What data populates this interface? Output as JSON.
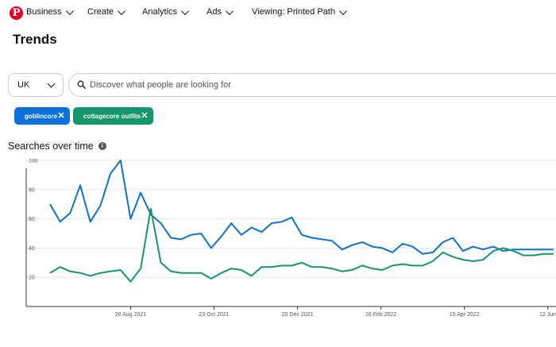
{
  "nav": {
    "business": "Business",
    "create": "Create",
    "analytics": "Analytics",
    "ads": "Ads",
    "viewing": "Viewing: Printed Path"
  },
  "page_title": "Trends",
  "region": {
    "value": "UK"
  },
  "search": {
    "placeholder": "Discover what people are looking for",
    "value": ""
  },
  "chips": [
    {
      "label": "goblincore",
      "color": "#0a72d9"
    },
    {
      "label": "cottagecore outfits",
      "color": "#16966b"
    }
  ],
  "section_title": "Searches over time",
  "chart_data": {
    "type": "line",
    "ylim": [
      0,
      120
    ],
    "yticks": [
      20,
      40,
      60,
      80,
      100
    ],
    "grid": true,
    "x": [
      "2021-07-01",
      "2021-07-08",
      "2021-07-15",
      "2021-07-22",
      "2021-07-29",
      "2021-08-05",
      "2021-08-12",
      "2021-08-19",
      "2021-08-26",
      "2021-09-02",
      "2021-09-09",
      "2021-09-16",
      "2021-09-23",
      "2021-09-30",
      "2021-10-07",
      "2021-10-14",
      "2021-10-21",
      "2021-10-28",
      "2021-11-04",
      "2021-11-11",
      "2021-11-18",
      "2021-11-25",
      "2021-12-02",
      "2021-12-09",
      "2021-12-16",
      "2021-12-23",
      "2021-12-30",
      "2022-01-06",
      "2022-01-13",
      "2022-01-20",
      "2022-01-27",
      "2022-02-03",
      "2022-02-10",
      "2022-02-17",
      "2022-02-24",
      "2022-03-03",
      "2022-03-10",
      "2022-03-17",
      "2022-03-24",
      "2022-03-31",
      "2022-04-07",
      "2022-04-14",
      "2022-04-21",
      "2022-04-28",
      "2022-05-05",
      "2022-05-12",
      "2022-05-19",
      "2022-05-26",
      "2022-06-02",
      "2022-06-09",
      "2022-06-16"
    ],
    "xtick_labels": [
      {
        "date": "2021-08-26",
        "label": "26 Aug 2021"
      },
      {
        "date": "2021-10-23",
        "label": "23 Oct 2021"
      },
      {
        "date": "2021-12-20",
        "label": "20 Dec 2021"
      },
      {
        "date": "2022-02-16",
        "label": "16 Feb 2022"
      },
      {
        "date": "2022-04-15",
        "label": "15 Apr 2022"
      },
      {
        "date": "2022-06-12",
        "label": "12 Jun"
      }
    ],
    "series": [
      {
        "name": "goblincore",
        "color": "#0f73c9",
        "values": [
          70,
          58,
          64,
          83,
          58,
          69,
          91,
          100,
          60,
          78,
          63,
          57,
          47,
          46,
          49,
          50,
          40,
          48,
          57,
          49,
          54,
          51,
          57,
          58,
          61,
          49,
          47,
          46,
          45,
          39,
          42,
          44,
          41,
          40,
          37,
          43,
          41,
          36,
          37,
          44,
          47,
          38,
          41,
          39,
          41,
          38,
          39,
          39,
          39,
          39,
          39
        ]
      },
      {
        "name": "cottagecore outfits",
        "color": "#17956a",
        "values": [
          23,
          27,
          24,
          23,
          21,
          23,
          24,
          25,
          17,
          26,
          67,
          30,
          24,
          23,
          23,
          23,
          19,
          23,
          26,
          25,
          21,
          27,
          27,
          28,
          28,
          30,
          27,
          27,
          26,
          24,
          25,
          28,
          26,
          25,
          28,
          29,
          28,
          28,
          31,
          37,
          34,
          32,
          31,
          32,
          38,
          40,
          38,
          35,
          35,
          36,
          36
        ]
      }
    ]
  }
}
